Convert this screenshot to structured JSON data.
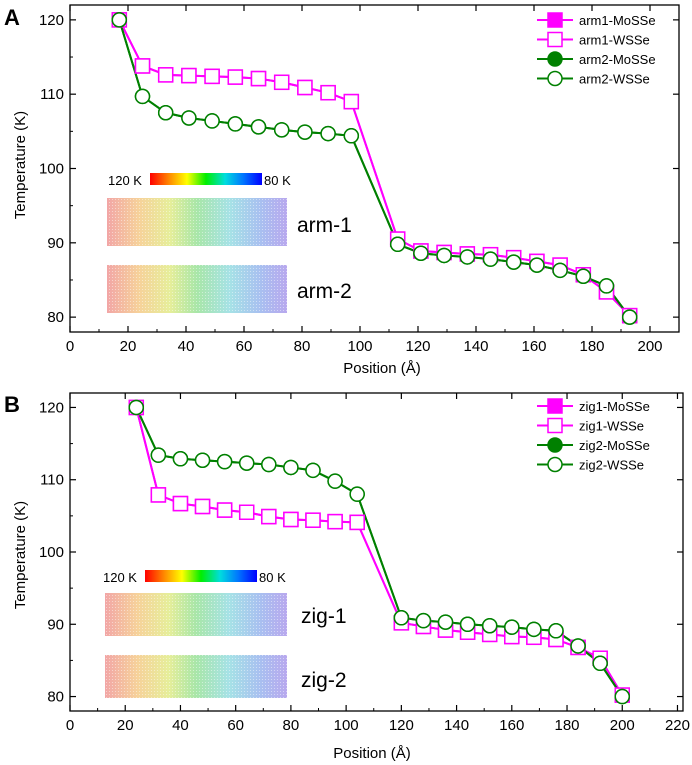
{
  "colors": {
    "mosse_a": "#ff00ff",
    "wsse_a": "#ff00ff",
    "mosse_b": "#008000",
    "wsse_b": "#008000"
  },
  "chart_data": [
    {
      "type": "line",
      "panel_label": "A",
      "xlabel": "Position (Å)",
      "ylabel": "Temperature (K)",
      "xlim": [
        0,
        210
      ],
      "ylim": [
        78,
        122
      ],
      "xticks": [
        0,
        20,
        40,
        60,
        80,
        100,
        120,
        140,
        160,
        180,
        200
      ],
      "yticks": [
        80,
        90,
        100,
        110,
        120
      ],
      "legend_position": "top-right",
      "series": [
        {
          "name": "arm1-MoSSe",
          "color": "#ff00ff",
          "marker": "square-filled",
          "x": [
            17,
            25,
            33,
            41,
            49,
            57,
            65,
            73,
            81,
            89,
            97,
            113,
            121,
            129,
            137,
            145,
            153,
            161,
            169,
            177,
            185,
            193
          ],
          "y": [
            120,
            113.8,
            112.6,
            112.5,
            112.4,
            112.3,
            112.1,
            111.6,
            110.9,
            110.2,
            109,
            90.5,
            88.9,
            88.7,
            88.5,
            88.4,
            88,
            87.5,
            87,
            85.7,
            83.4,
            80.2
          ]
        },
        {
          "name": "arm1-WSSe",
          "color": "#ff00ff",
          "marker": "square-open",
          "x": [
            17,
            25,
            33,
            41,
            49,
            57,
            65,
            73,
            81,
            89,
            97,
            113,
            121,
            129,
            137,
            145,
            153,
            161,
            169,
            177,
            185,
            193
          ],
          "y": [
            120,
            113.8,
            112.6,
            112.5,
            112.4,
            112.3,
            112.1,
            111.6,
            110.9,
            110.2,
            109,
            90.5,
            88.9,
            88.7,
            88.5,
            88.4,
            88,
            87.5,
            87,
            85.7,
            83.4,
            80.2
          ]
        },
        {
          "name": "arm2-MoSSe",
          "color": "#008000",
          "marker": "circle-filled",
          "x": [
            17,
            25,
            33,
            41,
            49,
            57,
            65,
            73,
            81,
            89,
            97,
            113,
            121,
            129,
            137,
            145,
            153,
            161,
            169,
            177,
            185,
            193
          ],
          "y": [
            120,
            109.7,
            107.5,
            106.8,
            106.4,
            106,
            105.6,
            105.2,
            104.9,
            104.7,
            104.4,
            89.8,
            88.6,
            88.3,
            88.1,
            87.8,
            87.4,
            87,
            86.3,
            85.5,
            84.2,
            80
          ]
        },
        {
          "name": "arm2-WSSe",
          "color": "#008000",
          "marker": "circle-open",
          "x": [
            17,
            25,
            33,
            41,
            49,
            57,
            65,
            73,
            81,
            89,
            97,
            113,
            121,
            129,
            137,
            145,
            153,
            161,
            169,
            177,
            185,
            193
          ],
          "y": [
            120,
            109.7,
            107.5,
            106.8,
            106.4,
            106,
            105.6,
            105.2,
            104.9,
            104.7,
            104.4,
            89.8,
            88.6,
            88.3,
            88.1,
            87.8,
            87.4,
            87,
            86.3,
            85.5,
            84.2,
            80
          ]
        }
      ],
      "inset": {
        "colorbar_high": "120 K",
        "colorbar_low": "80 K",
        "strip_labels": [
          "arm-1",
          "arm-2"
        ]
      }
    },
    {
      "type": "line",
      "panel_label": "B",
      "xlabel": "Position (Å)",
      "ylabel": "Temperature (K)",
      "xlim": [
        0,
        222
      ],
      "ylim": [
        78,
        122
      ],
      "xticks": [
        0,
        20,
        40,
        60,
        80,
        100,
        120,
        140,
        160,
        180,
        200,
        220
      ],
      "yticks": [
        80,
        90,
        100,
        110,
        120
      ],
      "legend_position": "top-right",
      "series": [
        {
          "name": "zig1-MoSSe",
          "color": "#ff00ff",
          "marker": "square-filled",
          "x": [
            24,
            32,
            40,
            48,
            56,
            64,
            72,
            80,
            88,
            96,
            104,
            120,
            128,
            136,
            144,
            152,
            160,
            168,
            176,
            184,
            192,
            200
          ],
          "y": [
            120,
            107.9,
            106.7,
            106.3,
            105.8,
            105.5,
            104.9,
            104.5,
            104.4,
            104.2,
            104.1,
            90.2,
            89.7,
            89.2,
            88.9,
            88.6,
            88.3,
            88.2,
            87.9,
            86.8,
            85.3,
            80.2
          ]
        },
        {
          "name": "zig1-WSSe",
          "color": "#ff00ff",
          "marker": "square-open",
          "x": [
            24,
            32,
            40,
            48,
            56,
            64,
            72,
            80,
            88,
            96,
            104,
            120,
            128,
            136,
            144,
            152,
            160,
            168,
            176,
            184,
            192,
            200
          ],
          "y": [
            120,
            107.9,
            106.7,
            106.3,
            105.8,
            105.5,
            104.9,
            104.5,
            104.4,
            104.2,
            104.1,
            90.2,
            89.7,
            89.2,
            88.9,
            88.6,
            88.3,
            88.2,
            87.9,
            86.8,
            85.3,
            80.2
          ]
        },
        {
          "name": "zig2-MoSSe",
          "color": "#008000",
          "marker": "circle-filled",
          "x": [
            24,
            32,
            40,
            48,
            56,
            64,
            72,
            80,
            88,
            96,
            104,
            120,
            128,
            136,
            144,
            152,
            160,
            168,
            176,
            184,
            192,
            200
          ],
          "y": [
            120,
            113.4,
            112.9,
            112.7,
            112.5,
            112.3,
            112.1,
            111.7,
            111.3,
            109.8,
            108,
            90.9,
            90.5,
            90.3,
            90,
            89.8,
            89.6,
            89.3,
            89.1,
            87,
            84.6,
            80
          ]
        },
        {
          "name": "zig2-WSSe",
          "color": "#008000",
          "marker": "circle-open",
          "x": [
            24,
            32,
            40,
            48,
            56,
            64,
            72,
            80,
            88,
            96,
            104,
            120,
            128,
            136,
            144,
            152,
            160,
            168,
            176,
            184,
            192,
            200
          ],
          "y": [
            120,
            113.4,
            112.9,
            112.7,
            112.5,
            112.3,
            112.1,
            111.7,
            111.3,
            109.8,
            108,
            90.9,
            90.5,
            90.3,
            90,
            89.8,
            89.6,
            89.3,
            89.1,
            87,
            84.6,
            80
          ]
        }
      ],
      "inset": {
        "colorbar_high": "120 K",
        "colorbar_low": "80 K",
        "strip_labels": [
          "zig-1",
          "zig-2"
        ]
      }
    }
  ]
}
